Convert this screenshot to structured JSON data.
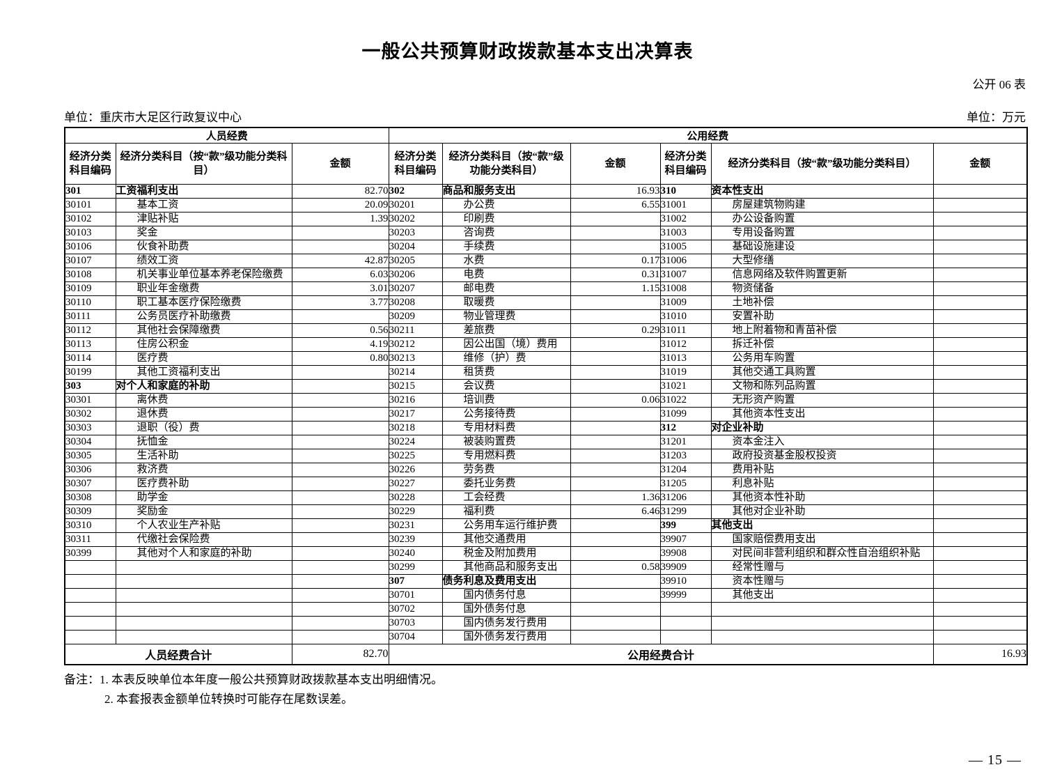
{
  "page": {
    "title": "一般公共预算财政拨款基本支出决算表",
    "form_tag": "公开 06 表",
    "unit_name": "单位：重庆市大足区行政复议中心",
    "unit_measure": "单位：万元",
    "page_number": "— 15 —"
  },
  "table": {
    "groups": [
      "人员经费",
      "公用经费"
    ],
    "col_headers": {
      "code": "经济分类科目编码",
      "subject": "经济分类科目（按“款”级功能分类科目）",
      "amount": "金额"
    },
    "rows": [
      {
        "l": [
          "301",
          "工资福利支出",
          "82.70",
          1
        ],
        "m": [
          "302",
          "商品和服务支出",
          "16.93",
          1
        ],
        "r": [
          "310",
          "资本性支出",
          "",
          1
        ]
      },
      {
        "l": [
          "30101",
          "基本工资",
          "20.09",
          0
        ],
        "m": [
          "30201",
          "办公费",
          "6.55",
          0
        ],
        "r": [
          "31001",
          "房屋建筑物购建",
          "",
          0
        ]
      },
      {
        "l": [
          "30102",
          "津贴补贴",
          "1.39",
          0
        ],
        "m": [
          "30202",
          "印刷费",
          "",
          0
        ],
        "r": [
          "31002",
          "办公设备购置",
          "",
          0
        ]
      },
      {
        "l": [
          "30103",
          "奖金",
          "",
          0
        ],
        "m": [
          "30203",
          "咨询费",
          "",
          0
        ],
        "r": [
          "31003",
          "专用设备购置",
          "",
          0
        ]
      },
      {
        "l": [
          "30106",
          "伙食补助费",
          "",
          0
        ],
        "m": [
          "30204",
          "手续费",
          "",
          0
        ],
        "r": [
          "31005",
          "基础设施建设",
          "",
          0
        ]
      },
      {
        "l": [
          "30107",
          "绩效工资",
          "42.87",
          0
        ],
        "m": [
          "30205",
          "水费",
          "0.17",
          0
        ],
        "r": [
          "31006",
          "大型修缮",
          "",
          0
        ]
      },
      {
        "l": [
          "30108",
          "机关事业单位基本养老保险缴费",
          "6.03",
          0
        ],
        "m": [
          "30206",
          "电费",
          "0.31",
          0
        ],
        "r": [
          "31007",
          "信息网络及软件购置更新",
          "",
          0
        ]
      },
      {
        "l": [
          "30109",
          "职业年金缴费",
          "3.01",
          0
        ],
        "m": [
          "30207",
          "邮电费",
          "1.15",
          0
        ],
        "r": [
          "31008",
          "物资储备",
          "",
          0
        ]
      },
      {
        "l": [
          "30110",
          "职工基本医疗保险缴费",
          "3.77",
          0
        ],
        "m": [
          "30208",
          "取暖费",
          "",
          0
        ],
        "r": [
          "31009",
          "土地补偿",
          "",
          0
        ]
      },
      {
        "l": [
          "30111",
          "公务员医疗补助缴费",
          "",
          0
        ],
        "m": [
          "30209",
          "物业管理费",
          "",
          0
        ],
        "r": [
          "31010",
          "安置补助",
          "",
          0
        ]
      },
      {
        "l": [
          "30112",
          "其他社会保障缴费",
          "0.56",
          0
        ],
        "m": [
          "30211",
          "差旅费",
          "0.29",
          0
        ],
        "r": [
          "31011",
          "地上附着物和青苗补偿",
          "",
          0
        ]
      },
      {
        "l": [
          "30113",
          "住房公积金",
          "4.19",
          0
        ],
        "m": [
          "30212",
          "因公出国（境）费用",
          "",
          0
        ],
        "r": [
          "31012",
          "拆迁补偿",
          "",
          0
        ]
      },
      {
        "l": [
          "30114",
          "医疗费",
          "0.80",
          0
        ],
        "m": [
          "30213",
          "维修（护）费",
          "",
          0
        ],
        "r": [
          "31013",
          "公务用车购置",
          "",
          0
        ]
      },
      {
        "l": [
          "30199",
          "其他工资福利支出",
          "",
          0
        ],
        "m": [
          "30214",
          "租赁费",
          "",
          0
        ],
        "r": [
          "31019",
          "其他交通工具购置",
          "",
          0
        ]
      },
      {
        "l": [
          "303",
          "对个人和家庭的补助",
          "",
          1
        ],
        "m": [
          "30215",
          "会议费",
          "",
          0
        ],
        "r": [
          "31021",
          "文物和陈列品购置",
          "",
          0
        ]
      },
      {
        "l": [
          "30301",
          "离休费",
          "",
          0
        ],
        "m": [
          "30216",
          "培训费",
          "0.06",
          0
        ],
        "r": [
          "31022",
          "无形资产购置",
          "",
          0
        ]
      },
      {
        "l": [
          "30302",
          "退休费",
          "",
          0
        ],
        "m": [
          "30217",
          "公务接待费",
          "",
          0
        ],
        "r": [
          "31099",
          "其他资本性支出",
          "",
          0
        ]
      },
      {
        "l": [
          "30303",
          "退职（役）费",
          "",
          0
        ],
        "m": [
          "30218",
          "专用材料费",
          "",
          0
        ],
        "r": [
          "312",
          "对企业补助",
          "",
          1
        ]
      },
      {
        "l": [
          "30304",
          "抚恤金",
          "",
          0
        ],
        "m": [
          "30224",
          "被装购置费",
          "",
          0
        ],
        "r": [
          "31201",
          "资本金注入",
          "",
          0
        ]
      },
      {
        "l": [
          "30305",
          "生活补助",
          "",
          0
        ],
        "m": [
          "30225",
          "专用燃料费",
          "",
          0
        ],
        "r": [
          "31203",
          "政府投资基金股权投资",
          "",
          0
        ]
      },
      {
        "l": [
          "30306",
          "救济费",
          "",
          0
        ],
        "m": [
          "30226",
          "劳务费",
          "",
          0
        ],
        "r": [
          "31204",
          "费用补贴",
          "",
          0
        ]
      },
      {
        "l": [
          "30307",
          "医疗费补助",
          "",
          0
        ],
        "m": [
          "30227",
          "委托业务费",
          "",
          0
        ],
        "r": [
          "31205",
          "利息补贴",
          "",
          0
        ]
      },
      {
        "l": [
          "30308",
          "助学金",
          "",
          0
        ],
        "m": [
          "30228",
          "工会经费",
          "1.36",
          0
        ],
        "r": [
          "31206",
          "其他资本性补助",
          "",
          0
        ]
      },
      {
        "l": [
          "30309",
          "奖励金",
          "",
          0
        ],
        "m": [
          "30229",
          "福利费",
          "6.46",
          0
        ],
        "r": [
          "31299",
          "其他对企业补助",
          "",
          0
        ]
      },
      {
        "l": [
          "30310",
          "个人农业生产补贴",
          "",
          0
        ],
        "m": [
          "30231",
          "公务用车运行维护费",
          "",
          0
        ],
        "r": [
          "399",
          "其他支出",
          "",
          1
        ]
      },
      {
        "l": [
          "30311",
          "代缴社会保险费",
          "",
          0
        ],
        "m": [
          "30239",
          "其他交通费用",
          "",
          0
        ],
        "r": [
          "39907",
          "国家赔偿费用支出",
          "",
          0
        ]
      },
      {
        "l": [
          "30399",
          "其他对个人和家庭的补助",
          "",
          0
        ],
        "m": [
          "30240",
          "税金及附加费用",
          "",
          0
        ],
        "r": [
          "39908",
          "对民间非营利组织和群众性自治组织补贴",
          "",
          0
        ]
      },
      {
        "l": [
          "",
          "",
          "",
          0
        ],
        "m": [
          "30299",
          "其他商品和服务支出",
          "0.58",
          0
        ],
        "r": [
          "39909",
          "经常性赠与",
          "",
          0
        ]
      },
      {
        "l": [
          "",
          "",
          "",
          0
        ],
        "m": [
          "307",
          "债务利息及费用支出",
          "",
          1
        ],
        "r": [
          "39910",
          "资本性赠与",
          "",
          0
        ]
      },
      {
        "l": [
          "",
          "",
          "",
          0
        ],
        "m": [
          "30701",
          "国内债务付息",
          "",
          0
        ],
        "r": [
          "39999",
          "其他支出",
          "",
          0
        ]
      },
      {
        "l": [
          "",
          "",
          "",
          0
        ],
        "m": [
          "30702",
          "国外债务付息",
          "",
          0
        ],
        "r": [
          "",
          "",
          "",
          0
        ]
      },
      {
        "l": [
          "",
          "",
          "",
          0
        ],
        "m": [
          "30703",
          "国内债务发行费用",
          "",
          0
        ],
        "r": [
          "",
          "",
          "",
          0
        ]
      },
      {
        "l": [
          "",
          "",
          "",
          0
        ],
        "m": [
          "30704",
          "国外债务发行费用",
          "",
          0
        ],
        "r": [
          "",
          "",
          "",
          0
        ]
      }
    ]
  },
  "totals": {
    "left_label": "人员经费合计",
    "left_amount": "82.70",
    "right_label": "公用经费合计",
    "right_amount": "16.93"
  },
  "notes": {
    "label": "备注：",
    "line1": "1. 本表反映单位本年度一般公共预算财政拨款基本支出明细情况。",
    "line2": "2. 本套报表金额单位转换时可能存在尾数误差。"
  }
}
